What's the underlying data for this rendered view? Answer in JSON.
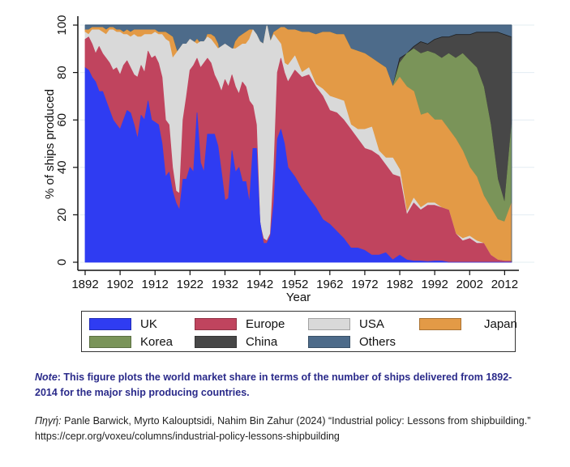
{
  "chart_data": {
    "type": "area",
    "stacked": true,
    "title": "",
    "xlabel": "Year",
    "ylabel": "% of ships produced",
    "xlim": [
      1892,
      2014
    ],
    "ylim": [
      0,
      100
    ],
    "x_ticks": [
      1892,
      1902,
      1912,
      1922,
      1932,
      1942,
      1952,
      1962,
      1972,
      1982,
      1992,
      2002,
      2012
    ],
    "y_ticks": [
      0,
      20,
      40,
      60,
      80,
      100
    ],
    "grid": true,
    "legend_position": "bottom",
    "note": "cumulative values: each series lists the top of its band (stack order UK, Europe, USA, Japan, Korea, China, Others)",
    "x": [
      1892,
      1893,
      1894,
      1895,
      1896,
      1897,
      1898,
      1899,
      1900,
      1901,
      1902,
      1903,
      1904,
      1905,
      1906,
      1907,
      1908,
      1909,
      1910,
      1911,
      1912,
      1913,
      1914,
      1915,
      1916,
      1917,
      1918,
      1919,
      1920,
      1921,
      1922,
      1923,
      1924,
      1925,
      1926,
      1927,
      1928,
      1929,
      1930,
      1931,
      1932,
      1933,
      1934,
      1935,
      1936,
      1937,
      1938,
      1939,
      1940,
      1941,
      1942,
      1943,
      1944,
      1945,
      1946,
      1947,
      1948,
      1949,
      1950,
      1952,
      1954,
      1956,
      1958,
      1960,
      1962,
      1964,
      1966,
      1968,
      1970,
      1972,
      1974,
      1976,
      1978,
      1980,
      1982,
      1984,
      1986,
      1988,
      1990,
      1992,
      1994,
      1996,
      1998,
      2000,
      2002,
      2004,
      2006,
      2008,
      2010,
      2012,
      2014
    ],
    "series": [
      {
        "name": "UK",
        "color": "#2f3cf2",
        "values": [
          82,
          81,
          78,
          76,
          72,
          72,
          68,
          64,
          60,
          58,
          56,
          60,
          64,
          63,
          58,
          52,
          62,
          60,
          68,
          60,
          59,
          58,
          50,
          36,
          38,
          30,
          25,
          22,
          35,
          35,
          40,
          38,
          63,
          42,
          38,
          54,
          54,
          54,
          49,
          38,
          26,
          27,
          47,
          38,
          40,
          34,
          34,
          25,
          48,
          48,
          17,
          8,
          8,
          11,
          25,
          52,
          56,
          50,
          40,
          36,
          31,
          27,
          23,
          18,
          16,
          13,
          10,
          6,
          6,
          5,
          3,
          3,
          4,
          1,
          3,
          1,
          0.5,
          0.5,
          0.3,
          0.5,
          0.5,
          0,
          0,
          0,
          0,
          0,
          0,
          0,
          0,
          0,
          0
        ]
      },
      {
        "name": "Europe",
        "color": "#c0445e",
        "values": [
          94,
          95,
          92,
          88,
          91,
          88,
          86,
          84,
          81,
          82,
          79,
          83,
          85,
          82,
          79,
          78,
          83,
          80,
          89,
          86,
          87,
          84,
          78,
          60,
          58,
          40,
          30,
          29,
          60,
          70,
          81,
          83,
          86,
          82,
          84,
          86,
          84,
          79,
          76,
          72,
          77,
          74,
          79,
          74,
          71,
          76,
          74,
          68,
          66,
          58,
          16,
          10,
          9,
          12,
          40,
          80,
          86,
          80,
          76,
          81,
          78,
          79,
          74,
          70,
          64,
          63,
          60,
          56,
          52,
          48,
          47,
          45,
          41,
          37,
          36,
          20,
          25,
          22,
          24,
          24,
          23,
          22,
          12,
          9,
          10,
          8,
          8,
          3,
          1,
          0.5,
          0.5
        ]
      },
      {
        "name": "USA",
        "color": "#d9d9d9",
        "values": [
          97,
          96,
          98,
          98,
          98,
          97,
          96,
          98,
          98,
          97,
          97,
          96,
          96,
          95,
          96,
          95,
          95,
          96,
          96,
          96,
          97,
          96,
          96,
          94,
          93,
          86,
          88,
          90,
          92,
          92,
          94,
          93,
          92,
          93,
          93,
          95,
          94,
          92,
          90,
          91,
          92,
          91,
          90,
          90,
          91,
          92,
          92,
          94,
          98,
          96,
          93,
          92,
          100,
          93,
          96,
          94,
          92,
          84,
          83,
          87,
          80,
          82,
          75,
          73,
          70,
          69,
          68,
          58,
          56,
          56,
          57,
          47,
          44,
          44,
          39,
          21,
          27,
          23,
          25,
          25,
          23,
          22,
          12,
          10,
          11,
          9,
          8,
          3,
          1,
          0.5,
          0.5
        ]
      },
      {
        "name": "Japan",
        "color": "#e39a46",
        "values": [
          98,
          98,
          99,
          99,
          99,
          99,
          98,
          99,
          99,
          98,
          98,
          97,
          98,
          97,
          98,
          98,
          98,
          98,
          98,
          98,
          98,
          97,
          97,
          97,
          96,
          95,
          90,
          86,
          88,
          88,
          90,
          92,
          94,
          92,
          92,
          96,
          96,
          95,
          92,
          80,
          80,
          82,
          88,
          93,
          95,
          96,
          97,
          98,
          98,
          96,
          93,
          92,
          100,
          93,
          97,
          98,
          99,
          99,
          98,
          98,
          97,
          97,
          96,
          97,
          97,
          96,
          96,
          90,
          89,
          88,
          86,
          84,
          82,
          74,
          78,
          74,
          72,
          62,
          63,
          60,
          60,
          56,
          52,
          47,
          40,
          36,
          28,
          23,
          18,
          17,
          25
        ]
      },
      {
        "name": "Korea",
        "color": "#7a9459",
        "values": [
          98,
          98,
          99,
          99,
          99,
          99,
          98,
          99,
          99,
          98,
          98,
          97,
          98,
          97,
          98,
          98,
          98,
          98,
          98,
          98,
          98,
          97,
          97,
          97,
          96,
          95,
          90,
          86,
          88,
          88,
          90,
          92,
          94,
          92,
          92,
          96,
          96,
          95,
          92,
          80,
          80,
          82,
          88,
          93,
          95,
          96,
          97,
          98,
          98,
          96,
          93,
          92,
          100,
          93,
          97,
          98,
          99,
          99,
          98,
          98,
          97,
          97,
          96,
          97,
          97,
          96,
          96,
          90,
          89,
          88,
          86,
          84,
          82,
          74,
          84,
          88,
          90,
          88,
          89,
          88,
          86,
          88,
          86,
          88,
          85,
          82,
          74,
          58,
          35,
          25,
          58
        ]
      },
      {
        "name": "China",
        "color": "#474747",
        "values": [
          98,
          98,
          99,
          99,
          99,
          99,
          98,
          99,
          99,
          98,
          98,
          97,
          98,
          97,
          98,
          98,
          98,
          98,
          98,
          98,
          98,
          97,
          97,
          97,
          96,
          95,
          90,
          86,
          88,
          88,
          90,
          92,
          94,
          92,
          92,
          96,
          96,
          95,
          92,
          80,
          80,
          82,
          88,
          93,
          95,
          96,
          97,
          98,
          98,
          96,
          93,
          92,
          100,
          93,
          97,
          98,
          99,
          99,
          98,
          98,
          97,
          97,
          96,
          97,
          97,
          96,
          96,
          90,
          89,
          88,
          86,
          84,
          82,
          74,
          86,
          88,
          91,
          93,
          92,
          94,
          95,
          95,
          96,
          96,
          96,
          97,
          97,
          97,
          97,
          96,
          95
        ]
      },
      {
        "name": "Others",
        "color": "#4d6b8a",
        "values": [
          100,
          100,
          100,
          100,
          100,
          100,
          100,
          100,
          100,
          100,
          100,
          100,
          100,
          100,
          100,
          100,
          100,
          100,
          100,
          100,
          100,
          100,
          100,
          100,
          100,
          100,
          100,
          100,
          100,
          100,
          100,
          100,
          100,
          100,
          100,
          100,
          100,
          100,
          100,
          100,
          100,
          100,
          100,
          100,
          100,
          100,
          100,
          100,
          100,
          100,
          100,
          100,
          100,
          100,
          100,
          100,
          100,
          100,
          100,
          100,
          100,
          100,
          100,
          100,
          100,
          100,
          100,
          100,
          100,
          100,
          100,
          100,
          100,
          100,
          100,
          100,
          100,
          100,
          100,
          100,
          100,
          100,
          100,
          100,
          100,
          100,
          100,
          100,
          100,
          100,
          100
        ]
      }
    ]
  },
  "legend": {
    "items": [
      {
        "label": "UK",
        "color": "#2f3cf2"
      },
      {
        "label": "Europe",
        "color": "#c0445e"
      },
      {
        "label": "USA",
        "color": "#d9d9d9"
      },
      {
        "label": "Japan",
        "color": "#e39a46"
      },
      {
        "label": "Korea",
        "color": "#7a9459"
      },
      {
        "label": "China",
        "color": "#474747"
      },
      {
        "label": "Others",
        "color": "#4d6b8a"
      }
    ]
  },
  "caption": {
    "note_label": "Note",
    "note_text": ": This figure plots the world market share in terms of the number of ships delivered from 1892-2014 for the major ship producing countries.",
    "source_label": "Πηγή:",
    "source_text": " Panle Barwick, Myrto Kalouptsidi, Nahim Bin Zahur (2024) “Industrial policy: Lessons from shipbuilding.” https://cepr.org/voxeu/columns/industrial-policy-lessons-shipbuilding"
  }
}
